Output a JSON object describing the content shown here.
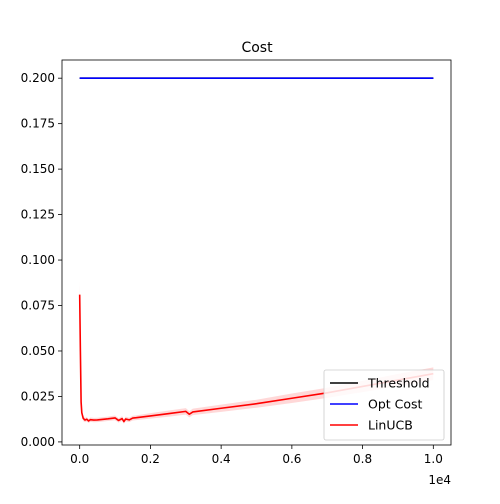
{
  "chart_data": {
    "type": "line",
    "title": "Cost",
    "xlabel": "",
    "ylabel": "",
    "x_offset_label": "1e4",
    "xlim": [
      -0.05,
      1.05
    ],
    "ylim": [
      -0.0017,
      0.21
    ],
    "x_ticks": [
      0.0,
      0.2,
      0.4,
      0.6,
      0.8,
      1.0
    ],
    "x_tick_labels": [
      "0.0",
      "0.2",
      "0.4",
      "0.6",
      "0.8",
      "1.0"
    ],
    "y_ticks": [
      0.0,
      0.025,
      0.05,
      0.075,
      0.1,
      0.125,
      0.15,
      0.175,
      0.2
    ],
    "y_tick_labels": [
      "0.000",
      "0.025",
      "0.050",
      "0.075",
      "0.100",
      "0.125",
      "0.150",
      "0.175",
      "0.200"
    ],
    "grid": false,
    "legend_position": "bottom-right",
    "series": [
      {
        "name": "Threshold",
        "color": "#000000",
        "x": [
          0.0,
          1.0
        ],
        "y": [
          0.2,
          0.2
        ]
      },
      {
        "name": "Opt Cost",
        "color": "#0000ff",
        "x": [
          0.0,
          1.0
        ],
        "y": [
          0.2,
          0.2
        ]
      },
      {
        "name": "LinUCB",
        "color": "#ff0000",
        "band_color": "#ffc8c8",
        "x": [
          0.0,
          0.002,
          0.004,
          0.006,
          0.01,
          0.015,
          0.02,
          0.025,
          0.03,
          0.04,
          0.05,
          0.06,
          0.08,
          0.1,
          0.11,
          0.12,
          0.125,
          0.13,
          0.14,
          0.15,
          0.16,
          0.2,
          0.25,
          0.3,
          0.31,
          0.32,
          0.4,
          0.5,
          0.6,
          0.7,
          0.8,
          0.9,
          1.0
        ],
        "y": [
          0.081,
          0.05,
          0.022,
          0.016,
          0.013,
          0.012,
          0.0125,
          0.0115,
          0.0122,
          0.012,
          0.0121,
          0.0123,
          0.0127,
          0.0132,
          0.0118,
          0.0128,
          0.0112,
          0.0126,
          0.0121,
          0.0131,
          0.0133,
          0.0143,
          0.0155,
          0.0168,
          0.0152,
          0.0165,
          0.0185,
          0.021,
          0.024,
          0.027,
          0.0305,
          0.034,
          0.0375
        ],
        "band_lower": [
          0.074,
          0.044,
          0.019,
          0.014,
          0.0115,
          0.0108,
          0.0113,
          0.0104,
          0.011,
          0.0108,
          0.0109,
          0.0111,
          0.0115,
          0.0119,
          0.0106,
          0.0115,
          0.01,
          0.0113,
          0.0109,
          0.0118,
          0.012,
          0.0128,
          0.0138,
          0.015,
          0.0135,
          0.0147,
          0.0165,
          0.0188,
          0.0214,
          0.0242,
          0.0274,
          0.0306,
          0.034
        ],
        "band_upper": [
          0.088,
          0.056,
          0.025,
          0.018,
          0.0145,
          0.0132,
          0.0137,
          0.0126,
          0.0134,
          0.0132,
          0.0133,
          0.0135,
          0.0139,
          0.0145,
          0.013,
          0.0141,
          0.0124,
          0.0139,
          0.0133,
          0.0144,
          0.0146,
          0.0158,
          0.0172,
          0.0186,
          0.0169,
          0.0183,
          0.0205,
          0.0232,
          0.0266,
          0.0298,
          0.0336,
          0.0374,
          0.041
        ]
      }
    ]
  }
}
